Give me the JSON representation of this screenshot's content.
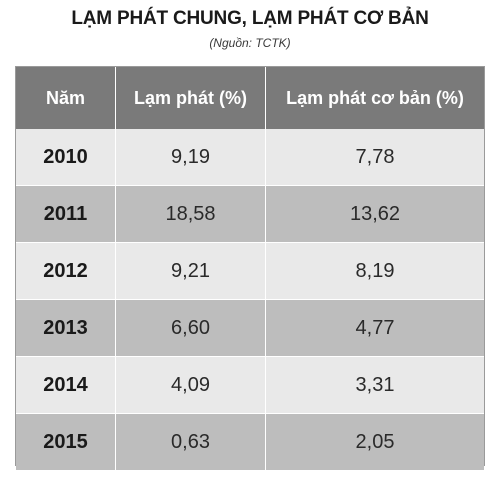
{
  "title": "LẠM PHÁT CHUNG, LẠM PHÁT CƠ BẢN",
  "source": "(Nguồn: TCTK)",
  "headers": [
    "Năm",
    "Lạm phát (%)",
    "Lạm phát cơ bản (%)"
  ],
  "rows": [
    {
      "year": "2010",
      "inflation": "9,19",
      "core": "7,78"
    },
    {
      "year": "2011",
      "inflation": "18,58",
      "core": "13,62"
    },
    {
      "year": "2012",
      "inflation": "9,21",
      "core": "8,19"
    },
    {
      "year": "2013",
      "inflation": "6,60",
      "core": "4,77"
    },
    {
      "year": "2014",
      "inflation": "4,09",
      "core": "3,31"
    },
    {
      "year": "2015",
      "inflation": "0,63",
      "core": "2,05"
    }
  ],
  "colors": {
    "header_bg": "#7a7a7a",
    "row_light": "#e9e9e9",
    "row_dark": "#bdbdbd"
  }
}
